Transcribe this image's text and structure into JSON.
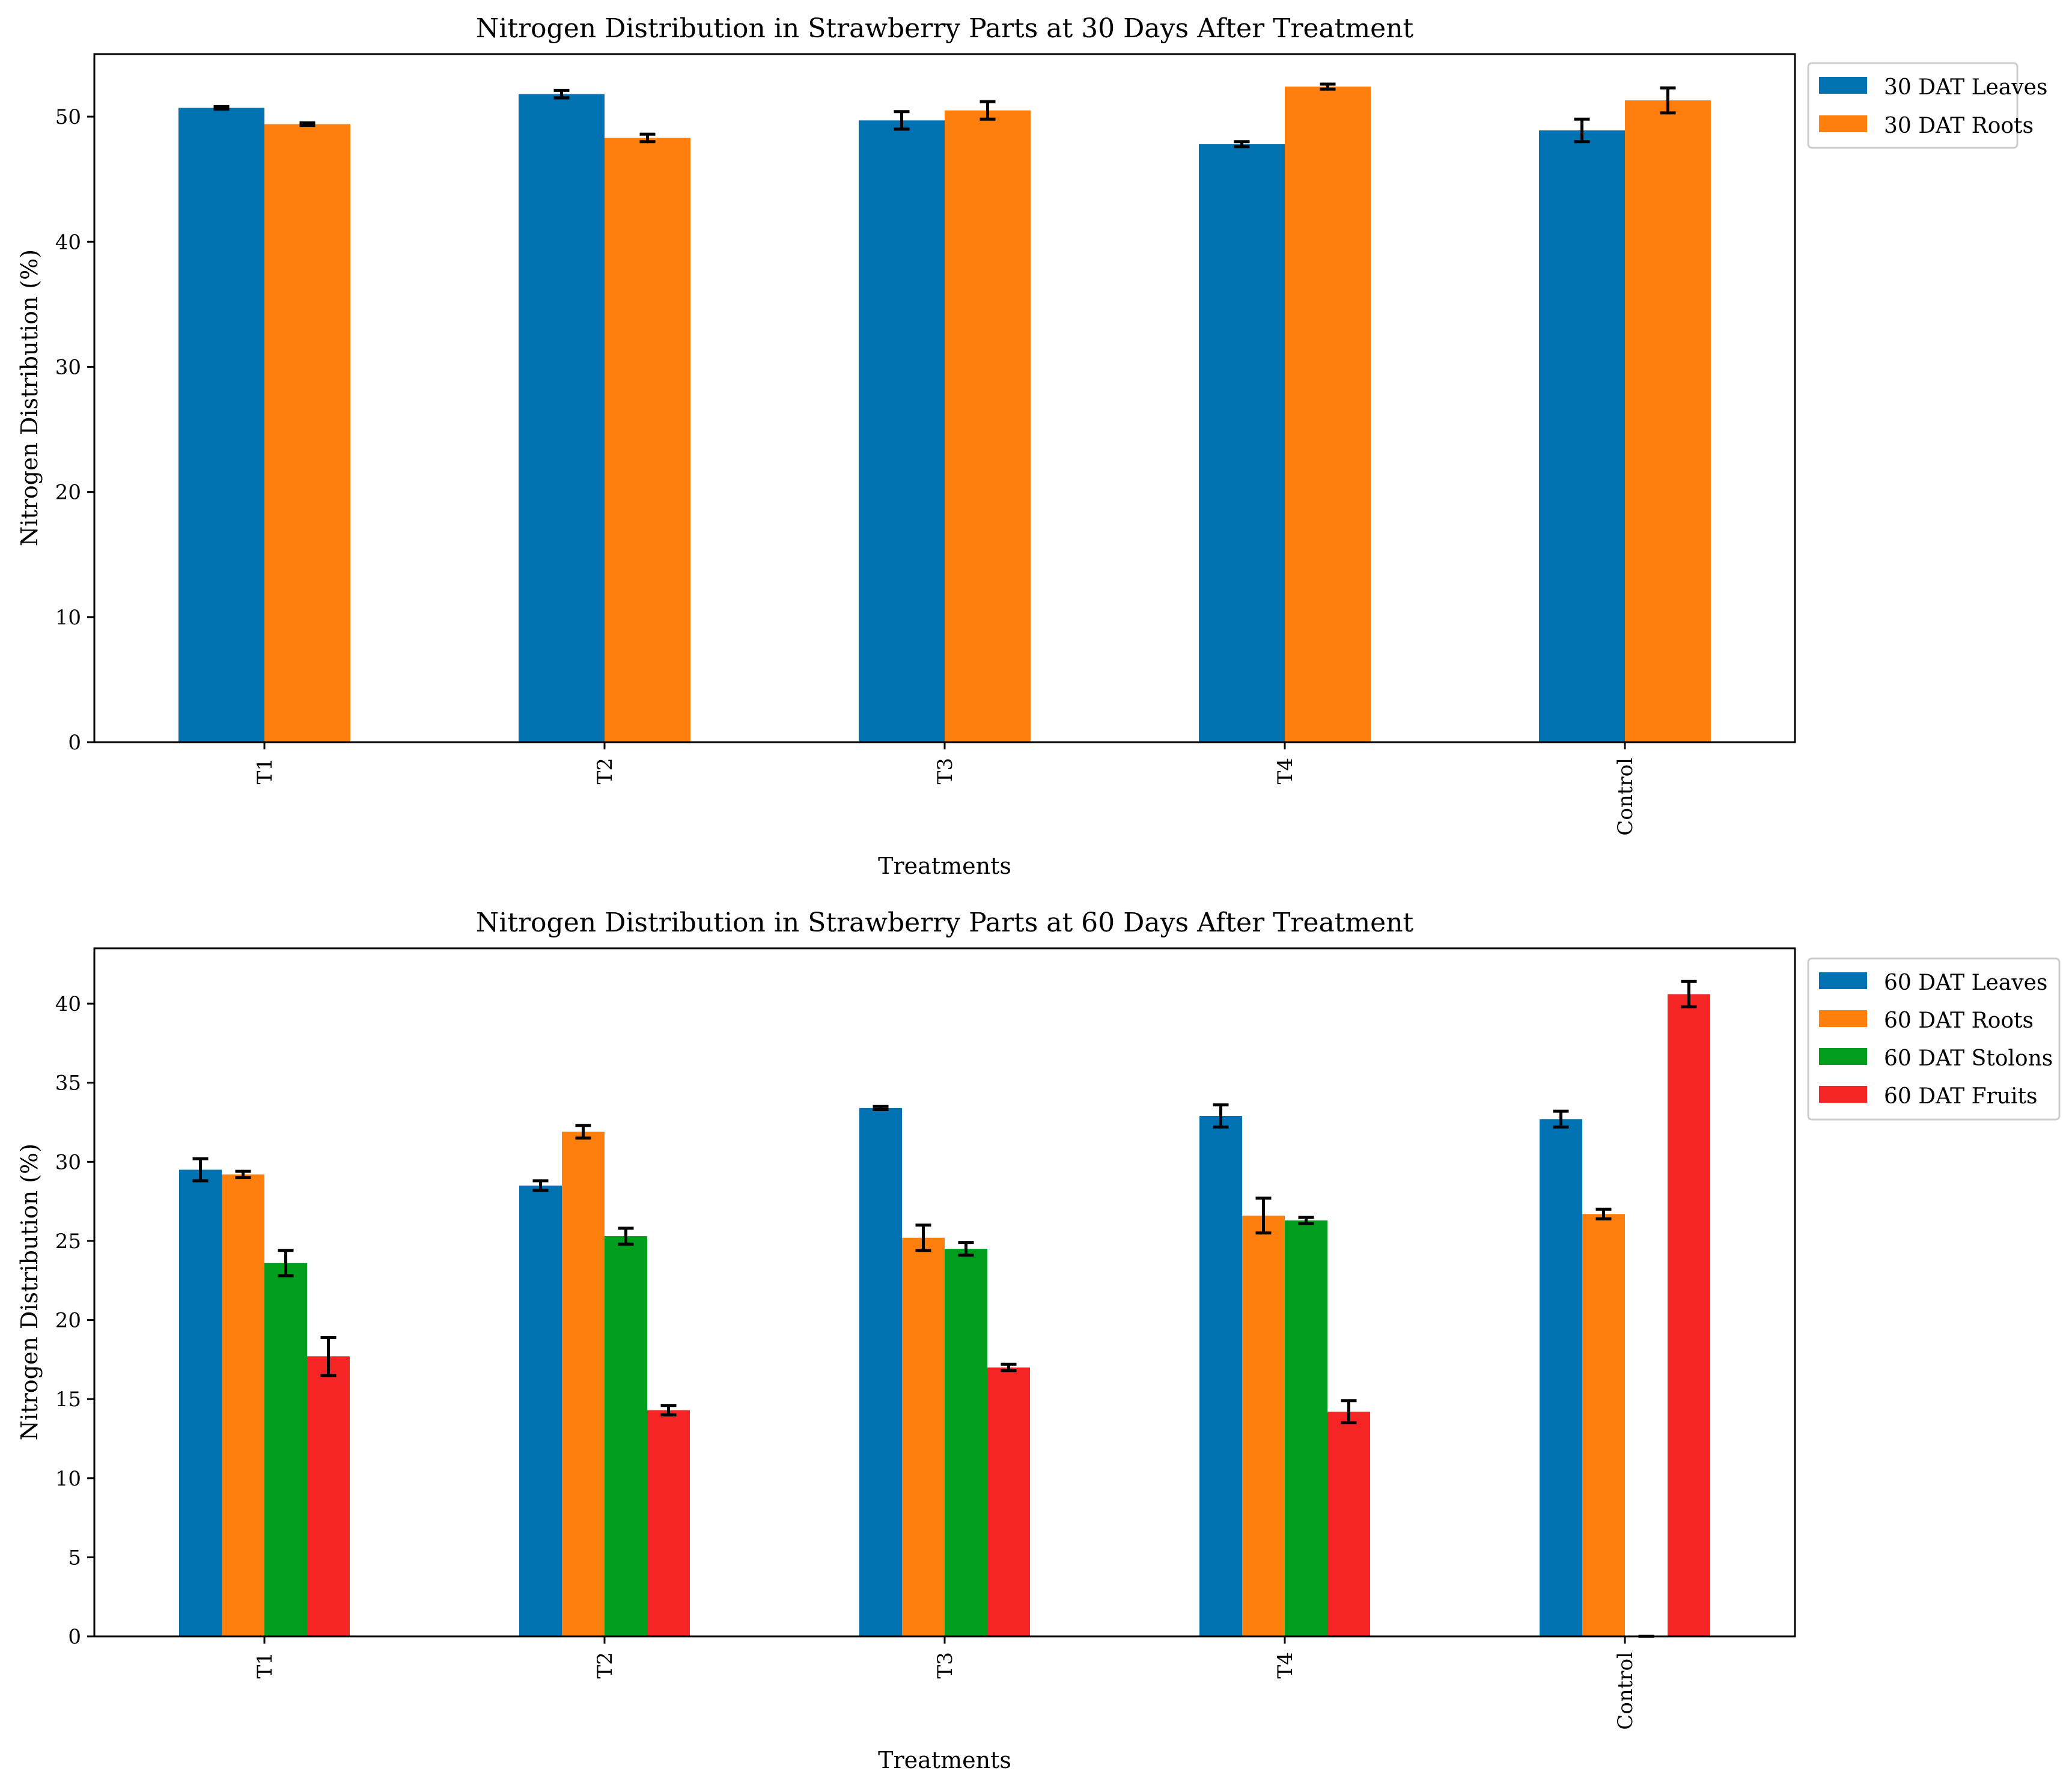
{
  "chart_data": [
    {
      "type": "bar",
      "title": "Nitrogen Distribution in Strawberry Parts at 30 Days After Treatment",
      "xlabel": "Treatments",
      "ylabel": "Nitrogen Distribution (%)",
      "ylim": [
        0,
        55
      ],
      "yticks": [
        0,
        10,
        20,
        30,
        40,
        50
      ],
      "grid": false,
      "legend_position": "outside-top-right",
      "categories": [
        "T1",
        "T2",
        "T3",
        "T4",
        "Control"
      ],
      "series": [
        {
          "name": "30 DAT Leaves",
          "color": "#0072B2",
          "values": [
            50.7,
            51.8,
            49.7,
            47.8,
            48.9
          ],
          "errors": [
            0.1,
            0.3,
            0.7,
            0.2,
            0.9
          ]
        },
        {
          "name": "30 DAT Roots",
          "color": "#FF7F0E",
          "values": [
            49.4,
            48.3,
            50.5,
            52.4,
            51.3
          ],
          "errors": [
            0.1,
            0.3,
            0.7,
            0.2,
            1.0
          ]
        }
      ]
    },
    {
      "type": "bar",
      "title": "Nitrogen Distribution in Strawberry Parts at 60 Days After Treatment",
      "xlabel": "Treatments",
      "ylabel": "Nitrogen Distribution (%)",
      "ylim": [
        0,
        43.5
      ],
      "yticks": [
        0,
        5,
        10,
        15,
        20,
        25,
        30,
        35,
        40
      ],
      "grid": false,
      "legend_position": "outside-top-right",
      "categories": [
        "T1",
        "T2",
        "T3",
        "T4",
        "Control"
      ],
      "series": [
        {
          "name": "60 DAT Leaves",
          "color": "#0072B2",
          "values": [
            29.5,
            28.5,
            33.4,
            32.9,
            32.7
          ],
          "errors": [
            0.7,
            0.3,
            0.1,
            0.7,
            0.5
          ]
        },
        {
          "name": "60 DAT Roots",
          "color": "#FF7F0E",
          "values": [
            29.2,
            31.9,
            25.2,
            26.6,
            26.7
          ],
          "errors": [
            0.2,
            0.4,
            0.8,
            1.1,
            0.3
          ]
        },
        {
          "name": "60 DAT Stolons",
          "color": "#009E1C",
          "values": [
            23.6,
            25.3,
            24.5,
            26.3,
            0.0
          ],
          "errors": [
            0.8,
            0.5,
            0.4,
            0.2,
            0.0
          ]
        },
        {
          "name": "60 DAT Fruits",
          "color": "#F52525",
          "values": [
            17.7,
            14.3,
            17.0,
            14.2,
            40.6
          ],
          "errors": [
            1.2,
            0.3,
            0.2,
            0.7,
            0.8
          ]
        }
      ]
    }
  ]
}
